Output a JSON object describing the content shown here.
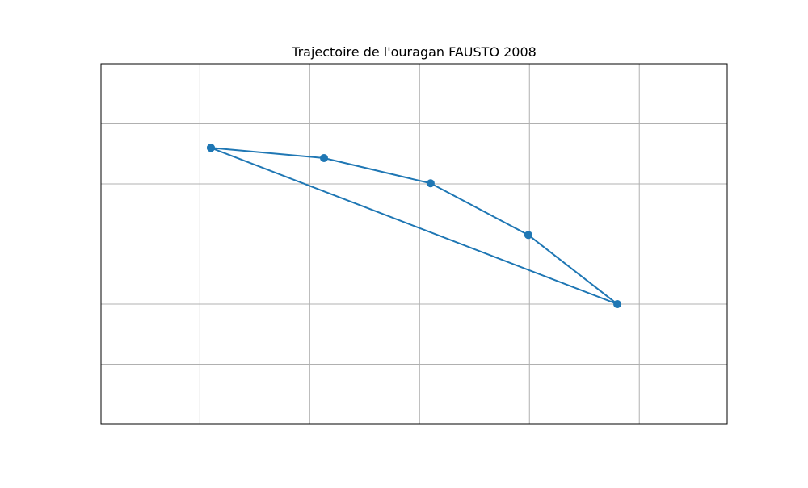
{
  "chart_data": {
    "type": "line",
    "title": "Trajectoire de l'ouragan FAUSTO 2008",
    "xlabel": "",
    "ylabel": "",
    "xlim": [
      0,
      5.7
    ],
    "ylim": [
      0,
      6
    ],
    "x_gridlines": [
      0.9,
      1.9,
      2.9,
      3.9,
      4.9
    ],
    "y_gridlines": [
      1,
      2,
      3,
      4,
      5,
      6
    ],
    "grid": true,
    "show_tick_labels": false,
    "series": [
      {
        "name": "FAUSTO 2008",
        "color": "#1f77b4",
        "marker": "circle",
        "points": [
          {
            "x": 1.0,
            "y": 4.6
          },
          {
            "x": 2.03,
            "y": 4.43
          },
          {
            "x": 3.0,
            "y": 4.01
          },
          {
            "x": 3.89,
            "y": 3.15
          },
          {
            "x": 4.7,
            "y": 2.0
          },
          {
            "x": 1.0,
            "y": 4.6
          }
        ]
      }
    ]
  }
}
